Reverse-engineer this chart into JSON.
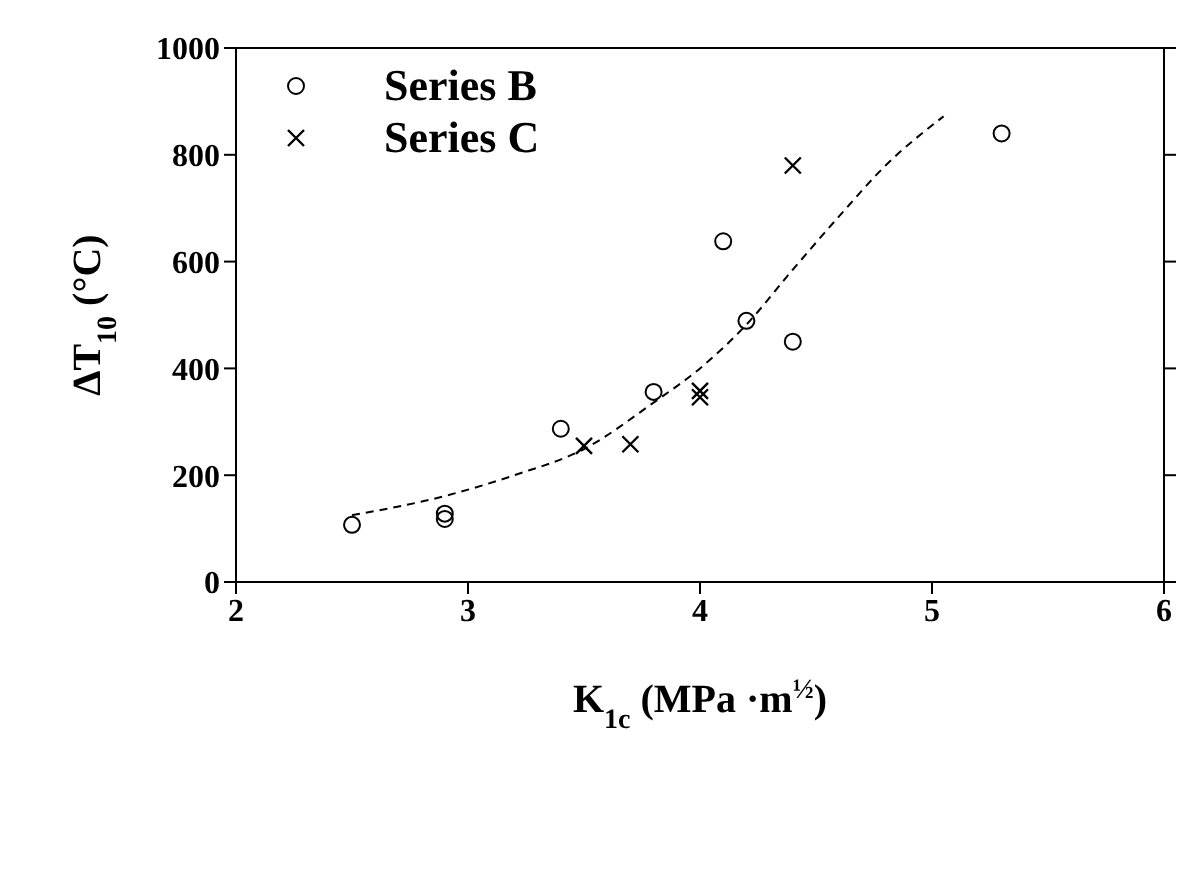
{
  "chart_data": {
    "type": "scatter",
    "xlabel": "K$_{1c}$ (MPa ·m$^{½}$)",
    "ylabel": "ΔT$_{10}$ (°C)",
    "xlim": [
      2,
      6
    ],
    "xticks": [
      2,
      3,
      4,
      5,
      6
    ],
    "ylim": [
      0,
      1000
    ],
    "yticks": [
      0,
      200,
      400,
      600,
      800,
      1000
    ],
    "legend": "top left",
    "series": [
      {
        "name": "Series B",
        "marker": "circle",
        "color": "#000000",
        "x": [
          2.5,
          2.9,
          2.9,
          3.4,
          3.8,
          4.1,
          4.2,
          4.4,
          5.3
        ],
        "values": [
          107,
          128,
          118,
          287,
          356,
          638,
          489,
          450,
          840
        ]
      },
      {
        "name": "Series C",
        "marker": "cross",
        "color": "#000000",
        "x": [
          3.5,
          3.7,
          4.0,
          4.0,
          4.4
        ],
        "values": [
          255,
          258,
          358,
          346,
          780
        ]
      },
      {
        "type": "line",
        "marker": "none",
        "line_style": "dashed",
        "color": "#000000",
        "x": [
          2.5,
          2.9,
          3.2,
          3.5,
          3.8,
          4.0,
          4.2,
          4.4,
          4.6,
          4.8,
          5.05
        ],
        "values": [
          125,
          161,
          200,
          249,
          336,
          400,
          482,
          585,
          685,
          780,
          872
        ]
      }
    ]
  }
}
